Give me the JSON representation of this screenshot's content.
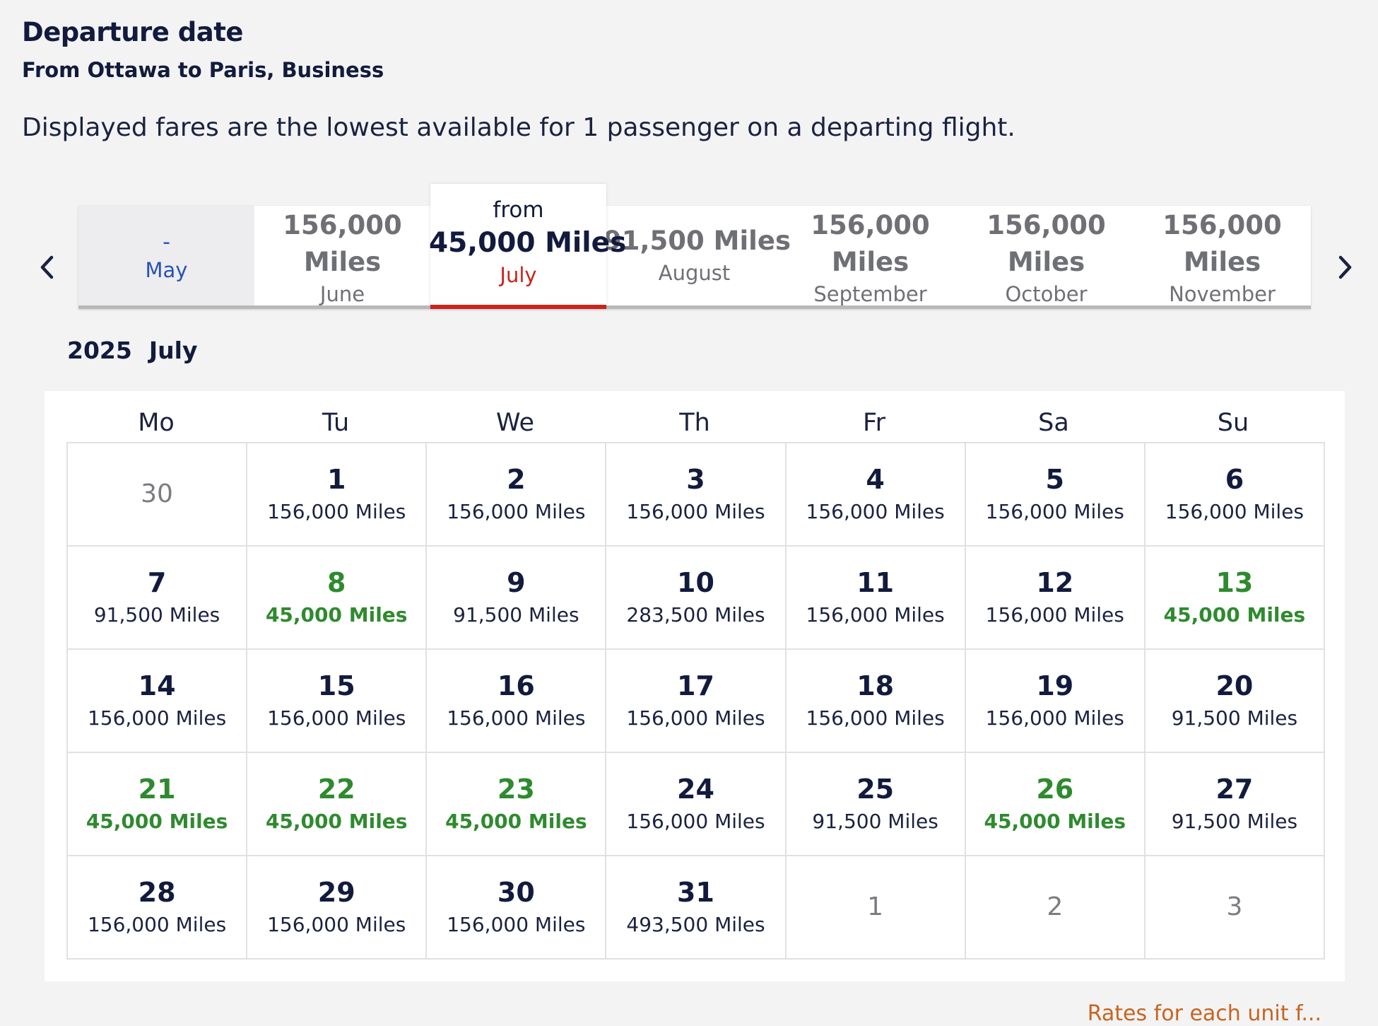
{
  "header": {
    "title": "Departure date",
    "subtitle": "From Ottawa to Paris, Business",
    "notice": "Displayed fares are the lowest available for 1 passenger on a departing flight."
  },
  "carousel": {
    "prev_icon": "chevron-left-icon",
    "next_icon": "chevron-right-icon",
    "months": [
      {
        "price": "-",
        "name": "May"
      },
      {
        "price": "156,000 Miles",
        "name": "June"
      },
      {
        "from": "from",
        "price": "45,000 Miles",
        "name": "July"
      },
      {
        "price": "91,500 Miles",
        "name": "August"
      },
      {
        "price": "156,000 Miles",
        "name": "September"
      },
      {
        "price": "156,000 Miles",
        "name": "October"
      },
      {
        "price": "156,000 Miles",
        "name": "November"
      }
    ]
  },
  "calendar": {
    "year": "2025",
    "month": "July",
    "weekdays": [
      "Mo",
      "Tu",
      "We",
      "Th",
      "Fr",
      "Sa",
      "Su"
    ],
    "days": [
      {
        "day": "30",
        "price": "",
        "out": true
      },
      {
        "day": "1",
        "price": "156,000 Miles"
      },
      {
        "day": "2",
        "price": "156,000 Miles"
      },
      {
        "day": "3",
        "price": "156,000 Miles"
      },
      {
        "day": "4",
        "price": "156,000 Miles"
      },
      {
        "day": "5",
        "price": "156,000 Miles"
      },
      {
        "day": "6",
        "price": "156,000 Miles"
      },
      {
        "day": "7",
        "price": "91,500 Miles"
      },
      {
        "day": "8",
        "price": "45,000 Miles",
        "lowest": true
      },
      {
        "day": "9",
        "price": "91,500 Miles"
      },
      {
        "day": "10",
        "price": "283,500 Miles"
      },
      {
        "day": "11",
        "price": "156,000 Miles"
      },
      {
        "day": "12",
        "price": "156,000 Miles"
      },
      {
        "day": "13",
        "price": "45,000 Miles",
        "lowest": true
      },
      {
        "day": "14",
        "price": "156,000 Miles"
      },
      {
        "day": "15",
        "price": "156,000 Miles"
      },
      {
        "day": "16",
        "price": "156,000 Miles"
      },
      {
        "day": "17",
        "price": "156,000 Miles"
      },
      {
        "day": "18",
        "price": "156,000 Miles"
      },
      {
        "day": "19",
        "price": "156,000 Miles"
      },
      {
        "day": "20",
        "price": "91,500 Miles"
      },
      {
        "day": "21",
        "price": "45,000 Miles",
        "lowest": true
      },
      {
        "day": "22",
        "price": "45,000 Miles",
        "lowest": true
      },
      {
        "day": "23",
        "price": "45,000 Miles",
        "lowest": true
      },
      {
        "day": "24",
        "price": "156,000 Miles"
      },
      {
        "day": "25",
        "price": "91,500 Miles"
      },
      {
        "day": "26",
        "price": "45,000 Miles",
        "lowest": true
      },
      {
        "day": "27",
        "price": "91,500 Miles"
      },
      {
        "day": "28",
        "price": "156,000 Miles"
      },
      {
        "day": "29",
        "price": "156,000 Miles"
      },
      {
        "day": "30",
        "price": "156,000 Miles"
      },
      {
        "day": "31",
        "price": "493,500 Miles"
      },
      {
        "day": "1",
        "price": "",
        "out": true
      },
      {
        "day": "2",
        "price": "",
        "out": true
      },
      {
        "day": "3",
        "price": "",
        "out": true
      }
    ]
  },
  "colors": {
    "text": "#121b3d",
    "lowest_fare": "#2f8a2f",
    "selected_accent": "#c8241b",
    "muted": "#6f7075",
    "link": "#c7651f"
  },
  "footer": {
    "link": "Rates for each unit f..."
  }
}
